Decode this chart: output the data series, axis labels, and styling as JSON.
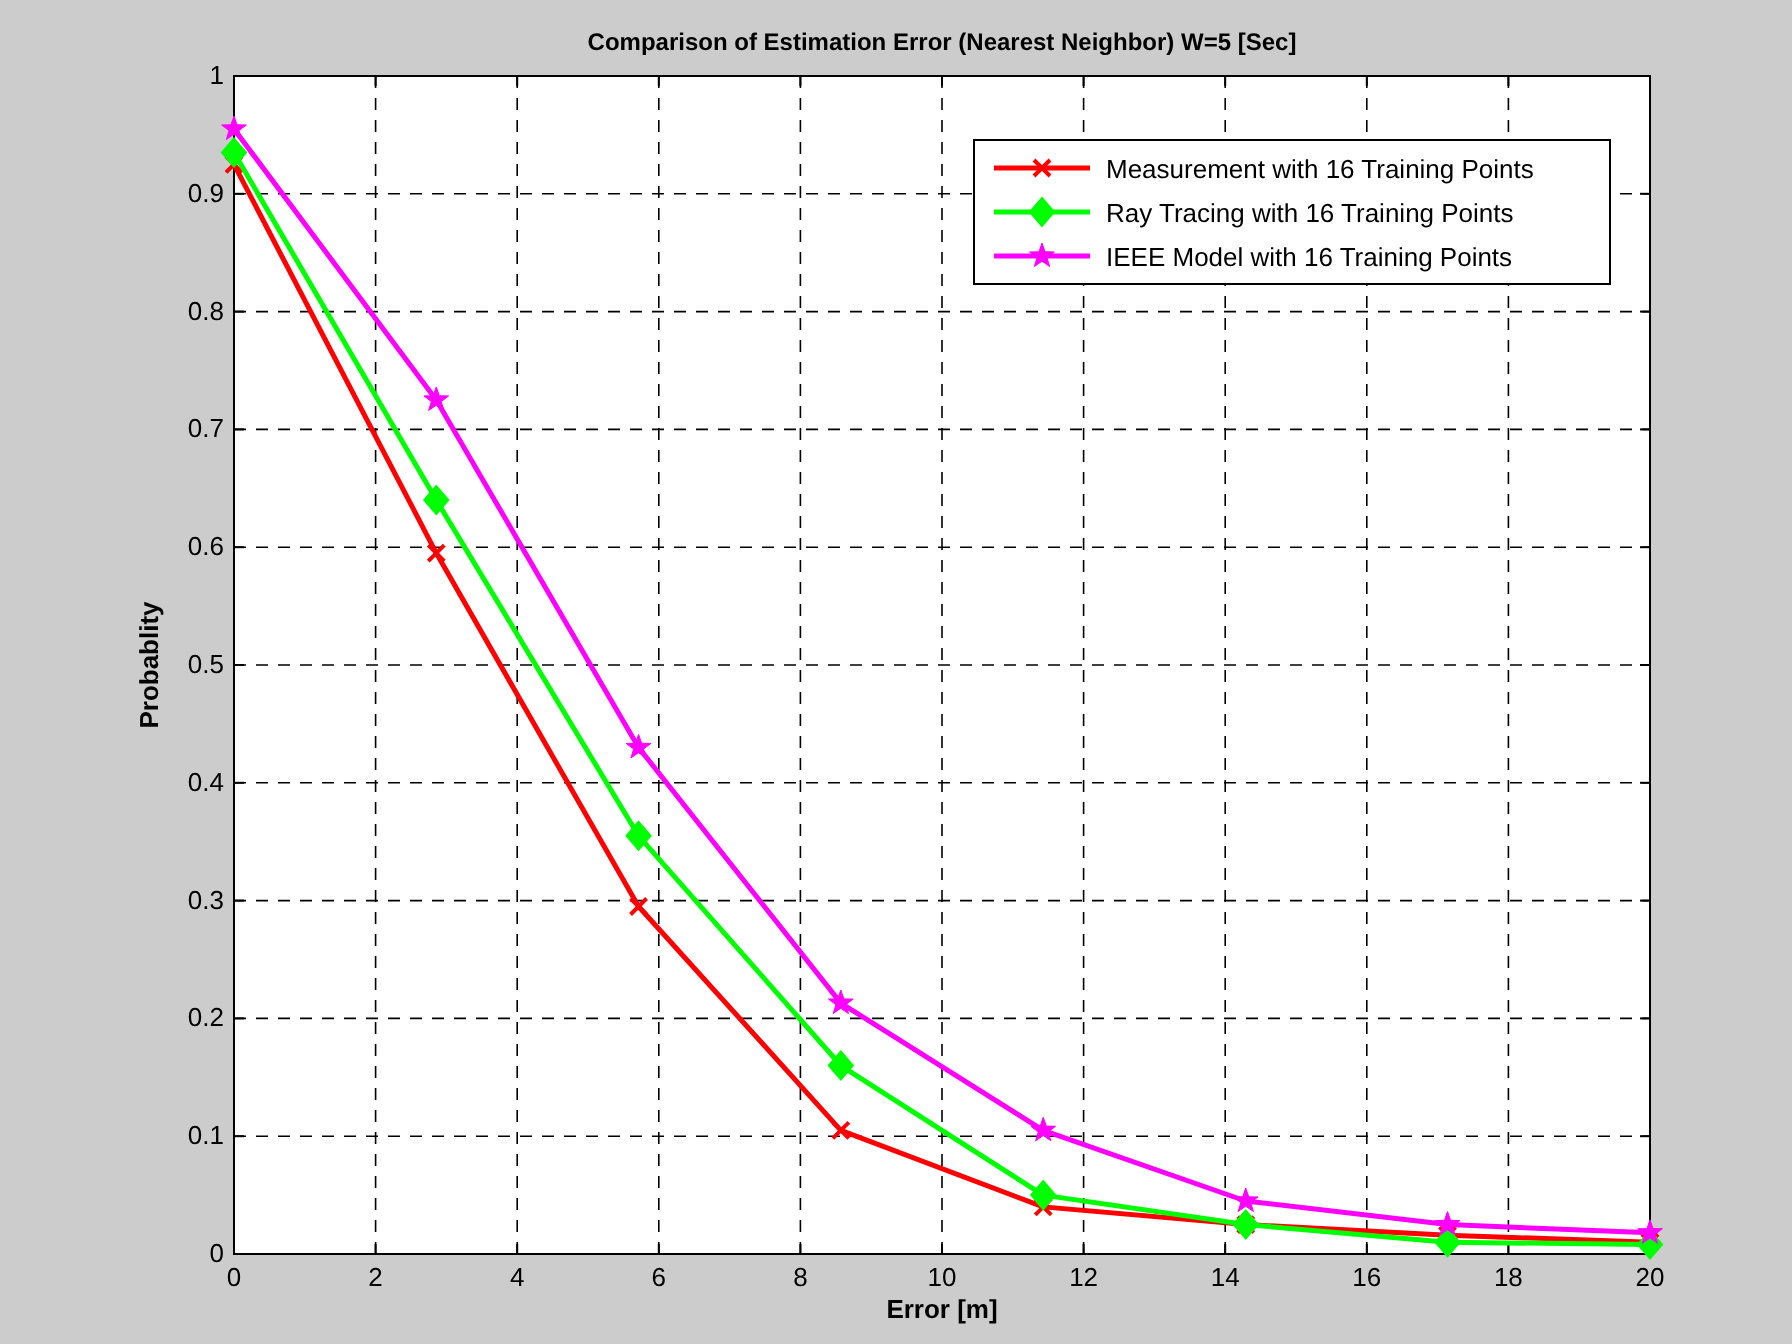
{
  "chart_data": {
    "type": "line",
    "title": "Comparison of Estimation Error (Nearest Neighbor) W=5 [Sec]",
    "xlabel": "Error [m]",
    "ylabel": "Probablity",
    "x": [
      0,
      2.857,
      5.714,
      8.571,
      11.43,
      14.29,
      17.14,
      20
    ],
    "series": [
      {
        "name": "Measurement with 16 Training Points",
        "color": "#ff0000",
        "marker": "cross",
        "values": [
          0.925,
          0.595,
          0.295,
          0.105,
          0.04,
          0.025,
          0.016,
          0.01
        ]
      },
      {
        "name": "Ray Tracing with 16 Training Points",
        "color": "#00ff00",
        "marker": "diamond",
        "values": [
          0.935,
          0.64,
          0.355,
          0.16,
          0.05,
          0.025,
          0.01,
          0.008
        ]
      },
      {
        "name": "IEEE Model with 16 Training Points",
        "color": "#ff00ff",
        "marker": "star",
        "values": [
          0.955,
          0.725,
          0.43,
          0.213,
          0.105,
          0.045,
          0.025,
          0.018
        ]
      }
    ],
    "xlim": [
      0,
      20
    ],
    "xticks": [
      0,
      2,
      4,
      6,
      8,
      10,
      12,
      14,
      16,
      18,
      20
    ],
    "ylim": [
      0,
      1
    ],
    "yticks": [
      0,
      0.1,
      0.2,
      0.3,
      0.4,
      0.5,
      0.6,
      0.7,
      0.8,
      0.9,
      1
    ],
    "grid": true,
    "legend": "top right",
    "line_style": "solid"
  }
}
